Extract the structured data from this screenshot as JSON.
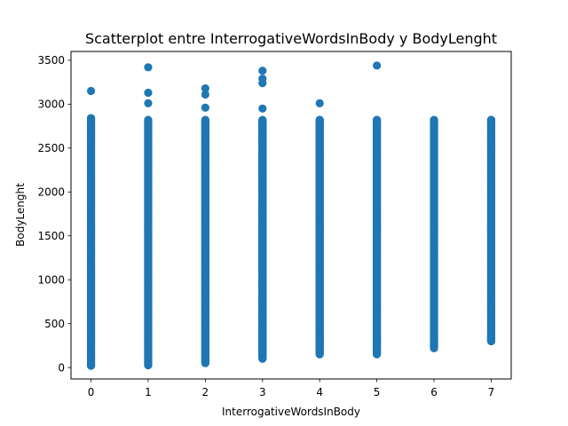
{
  "chart_data": {
    "type": "scatter",
    "title": "Scatterplot entre InterrogativeWordsInBody y BodyLenght",
    "xlabel": "InterrogativeWordsInBody",
    "ylabel": "BodyLenght",
    "xlim": [
      -0.35,
      7.35
    ],
    "ylim": [
      -130,
      3600
    ],
    "xticks": [
      0,
      1,
      2,
      3,
      4,
      5,
      6,
      7
    ],
    "yticks": [
      0,
      500,
      1000,
      1500,
      2000,
      2500,
      3000,
      3500
    ],
    "grid": false,
    "legend": "none",
    "marker_color": "#1f77b4",
    "columns": [
      {
        "x": 0,
        "y_min": 20,
        "y_max": 2840,
        "outliers": [
          3150
        ]
      },
      {
        "x": 1,
        "y_min": 25,
        "y_max": 2820,
        "outliers": [
          3010,
          3130,
          3420
        ]
      },
      {
        "x": 2,
        "y_min": 50,
        "y_max": 2820,
        "outliers": [
          2960,
          3110,
          3180
        ]
      },
      {
        "x": 3,
        "y_min": 100,
        "y_max": 2820,
        "outliers": [
          2950,
          3240,
          3290,
          3380
        ]
      },
      {
        "x": 4,
        "y_min": 150,
        "y_max": 2820,
        "outliers": [
          3010
        ]
      },
      {
        "x": 5,
        "y_min": 150,
        "y_max": 2820,
        "outliers": [
          3440
        ]
      },
      {
        "x": 6,
        "y_min": 220,
        "y_max": 2820,
        "outliers": []
      },
      {
        "x": 7,
        "y_min": 300,
        "y_max": 2820,
        "outliers": []
      }
    ]
  }
}
